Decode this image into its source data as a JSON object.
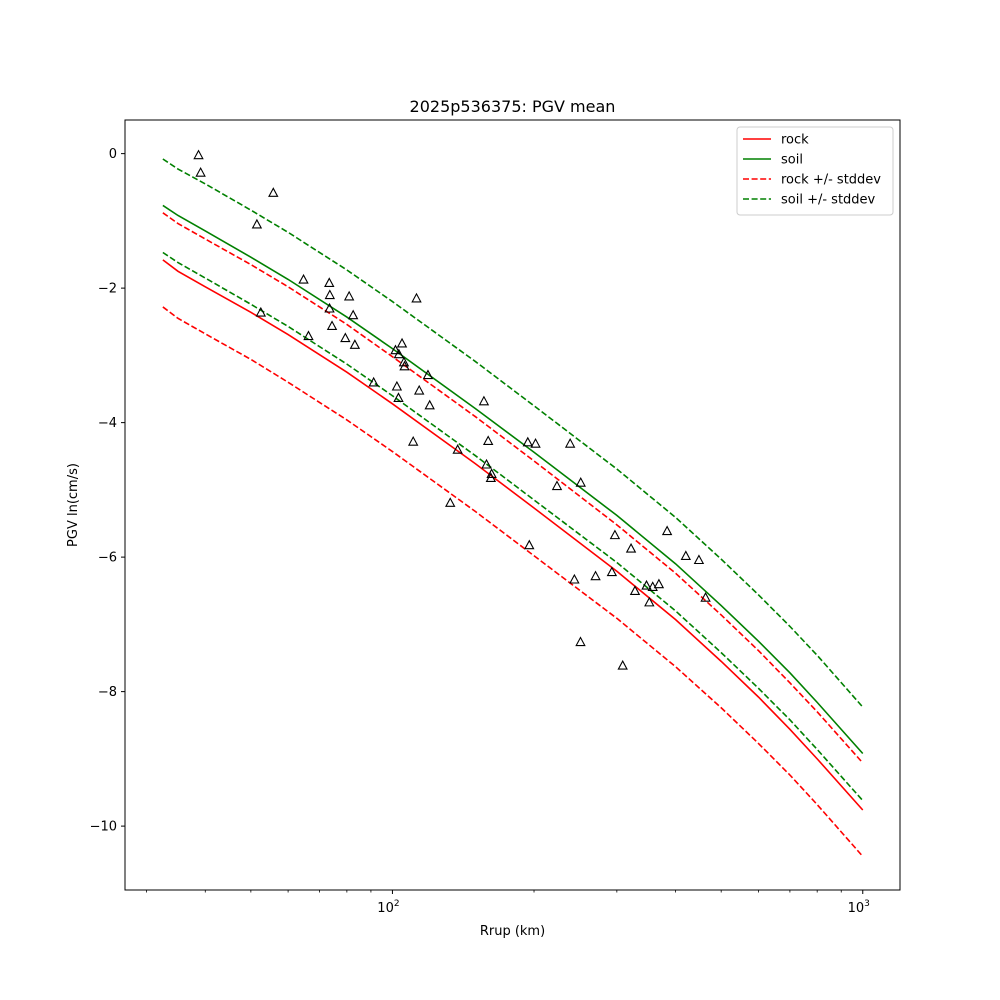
{
  "chart_data": {
    "type": "line",
    "title": "2025p536375: PGV mean",
    "xlabel": "Rrup (km)",
    "ylabel": "PGV ln(cm/s)",
    "xscale": "log",
    "xlim": [
      27,
      1200
    ],
    "ylim": [
      -10.95,
      0.5
    ],
    "x_major_ticks": [
      100,
      1000
    ],
    "x_major_tick_labels": [
      {
        "base": "10",
        "exp": "2"
      },
      {
        "base": "10",
        "exp": "3"
      }
    ],
    "x_minor_ticks": [
      30,
      40,
      50,
      60,
      70,
      80,
      90,
      200,
      300,
      400,
      500,
      600,
      700,
      800,
      900
    ],
    "y_ticks": [
      0,
      -2,
      -4,
      -6,
      -8,
      -10
    ],
    "y_tick_labels": [
      "0",
      "−2",
      "−4",
      "−6",
      "−8",
      "−10"
    ],
    "grid": false,
    "legend_position": "top-right",
    "series": [
      {
        "name": "rock",
        "style": "solid",
        "color": "#ff0000",
        "x": [
          32.5,
          35,
          40,
          50,
          60,
          80,
          100,
          150,
          200,
          300,
          400,
          500,
          600,
          700,
          800,
          1000
        ],
        "y": [
          -1.58,
          -1.75,
          -1.98,
          -2.36,
          -2.69,
          -3.25,
          -3.72,
          -4.61,
          -5.27,
          -6.21,
          -6.93,
          -7.55,
          -8.08,
          -8.56,
          -9.0,
          -9.76
        ]
      },
      {
        "name": "soil",
        "style": "solid",
        "color": "#008000",
        "x": [
          32.5,
          35,
          40,
          50,
          60,
          80,
          100,
          150,
          200,
          300,
          400,
          500,
          600,
          700,
          800,
          1000
        ],
        "y": [
          -0.77,
          -0.92,
          -1.15,
          -1.54,
          -1.87,
          -2.43,
          -2.9,
          -3.79,
          -4.44,
          -5.38,
          -6.1,
          -6.72,
          -7.25,
          -7.72,
          -8.16,
          -8.92
        ]
      },
      {
        "name": "rock +/- stddev",
        "style": "dashed",
        "color": "#ff0000",
        "x": [
          32.5,
          35,
          40,
          50,
          60,
          80,
          100,
          150,
          200,
          300,
          400,
          500,
          600,
          700,
          800,
          1000
        ],
        "y": [
          -0.88,
          -1.04,
          -1.27,
          -1.65,
          -1.98,
          -2.54,
          -3.02,
          -3.91,
          -4.57,
          -5.52,
          -6.24,
          -6.86,
          -7.39,
          -7.87,
          -8.3,
          -9.06
        ]
      },
      {
        "name": "",
        "style": "dashed",
        "color": "#ff0000",
        "x": [
          32.5,
          35,
          40,
          50,
          60,
          80,
          100,
          150,
          200,
          300,
          400,
          500,
          600,
          700,
          800,
          1000
        ],
        "y": [
          -2.28,
          -2.45,
          -2.68,
          -3.06,
          -3.4,
          -3.96,
          -4.43,
          -5.32,
          -5.98,
          -6.91,
          -7.63,
          -8.24,
          -8.77,
          -9.24,
          -9.68,
          -10.45
        ]
      },
      {
        "name": "soil +/- stddev",
        "style": "dashed",
        "color": "#008000",
        "x": [
          32.5,
          35,
          40,
          50,
          60,
          80,
          100,
          150,
          200,
          300,
          400,
          500,
          600,
          700,
          800,
          1000
        ],
        "y": [
          -0.08,
          -0.23,
          -0.45,
          -0.84,
          -1.17,
          -1.73,
          -2.2,
          -3.09,
          -3.75,
          -4.69,
          -5.41,
          -6.03,
          -6.56,
          -7.03,
          -7.46,
          -8.23
        ]
      },
      {
        "name": "",
        "style": "dashed",
        "color": "#008000",
        "x": [
          32.5,
          35,
          40,
          50,
          60,
          80,
          100,
          150,
          200,
          300,
          400,
          500,
          600,
          700,
          800,
          1000
        ],
        "y": [
          -1.47,
          -1.62,
          -1.85,
          -2.24,
          -2.57,
          -3.13,
          -3.6,
          -4.49,
          -5.15,
          -6.08,
          -6.8,
          -7.42,
          -7.95,
          -8.42,
          -8.86,
          -9.62
        ]
      }
    ],
    "observations": {
      "marker": "triangle",
      "x": [
        38.7,
        39.1,
        51.5,
        55.8,
        52.5,
        64.7,
        66.3,
        73.4,
        73.6,
        73.5,
        74.4,
        79.4,
        80.9,
        82.5,
        83.2,
        91.2,
        101.5,
        102.2,
        103.2,
        103.0,
        104.8,
        106.1,
        105.8,
        112.5,
        110.7,
        114.0,
        119.0,
        120.0,
        132.7,
        137.6,
        156.5,
        158.5,
        159.8,
        161.9,
        162.5,
        194.0,
        195.4,
        201.5,
        223.8,
        238.7,
        243.7,
        251.4,
        251.1,
        270.3,
        292.8,
        297.2,
        308.7,
        321.6,
        327.9,
        346.9,
        351.7,
        357.6,
        368.6,
        383.7,
        420.5,
        448.4,
        463.2
      ],
      "y": [
        -0.02,
        -0.28,
        -1.05,
        -0.58,
        -2.36,
        -1.87,
        -2.71,
        -1.92,
        -2.1,
        -2.3,
        -2.56,
        -2.74,
        -2.12,
        -2.4,
        -2.84,
        -3.4,
        -2.92,
        -3.46,
        -2.98,
        -3.63,
        -2.82,
        -3.16,
        -3.1,
        -2.15,
        -4.28,
        -3.52,
        -3.29,
        -3.74,
        -5.19,
        -4.4,
        -3.68,
        -4.62,
        -4.27,
        -4.82,
        -4.76,
        -4.29,
        -5.82,
        -4.31,
        -4.94,
        -4.31,
        -6.33,
        -4.89,
        -7.26,
        -6.28,
        -6.22,
        -5.67,
        -7.61,
        -5.87,
        -6.5,
        -6.42,
        -6.67,
        -6.44,
        -6.4,
        -5.61,
        -5.98,
        -6.04,
        -6.6
      ]
    },
    "legend": [
      {
        "label": "rock",
        "color": "#ff0000",
        "style": "solid"
      },
      {
        "label": "soil",
        "color": "#008000",
        "style": "solid"
      },
      {
        "label": "rock +/- stddev",
        "color": "#ff0000",
        "style": "dashed"
      },
      {
        "label": "soil +/- stddev",
        "color": "#008000",
        "style": "dashed"
      }
    ]
  }
}
